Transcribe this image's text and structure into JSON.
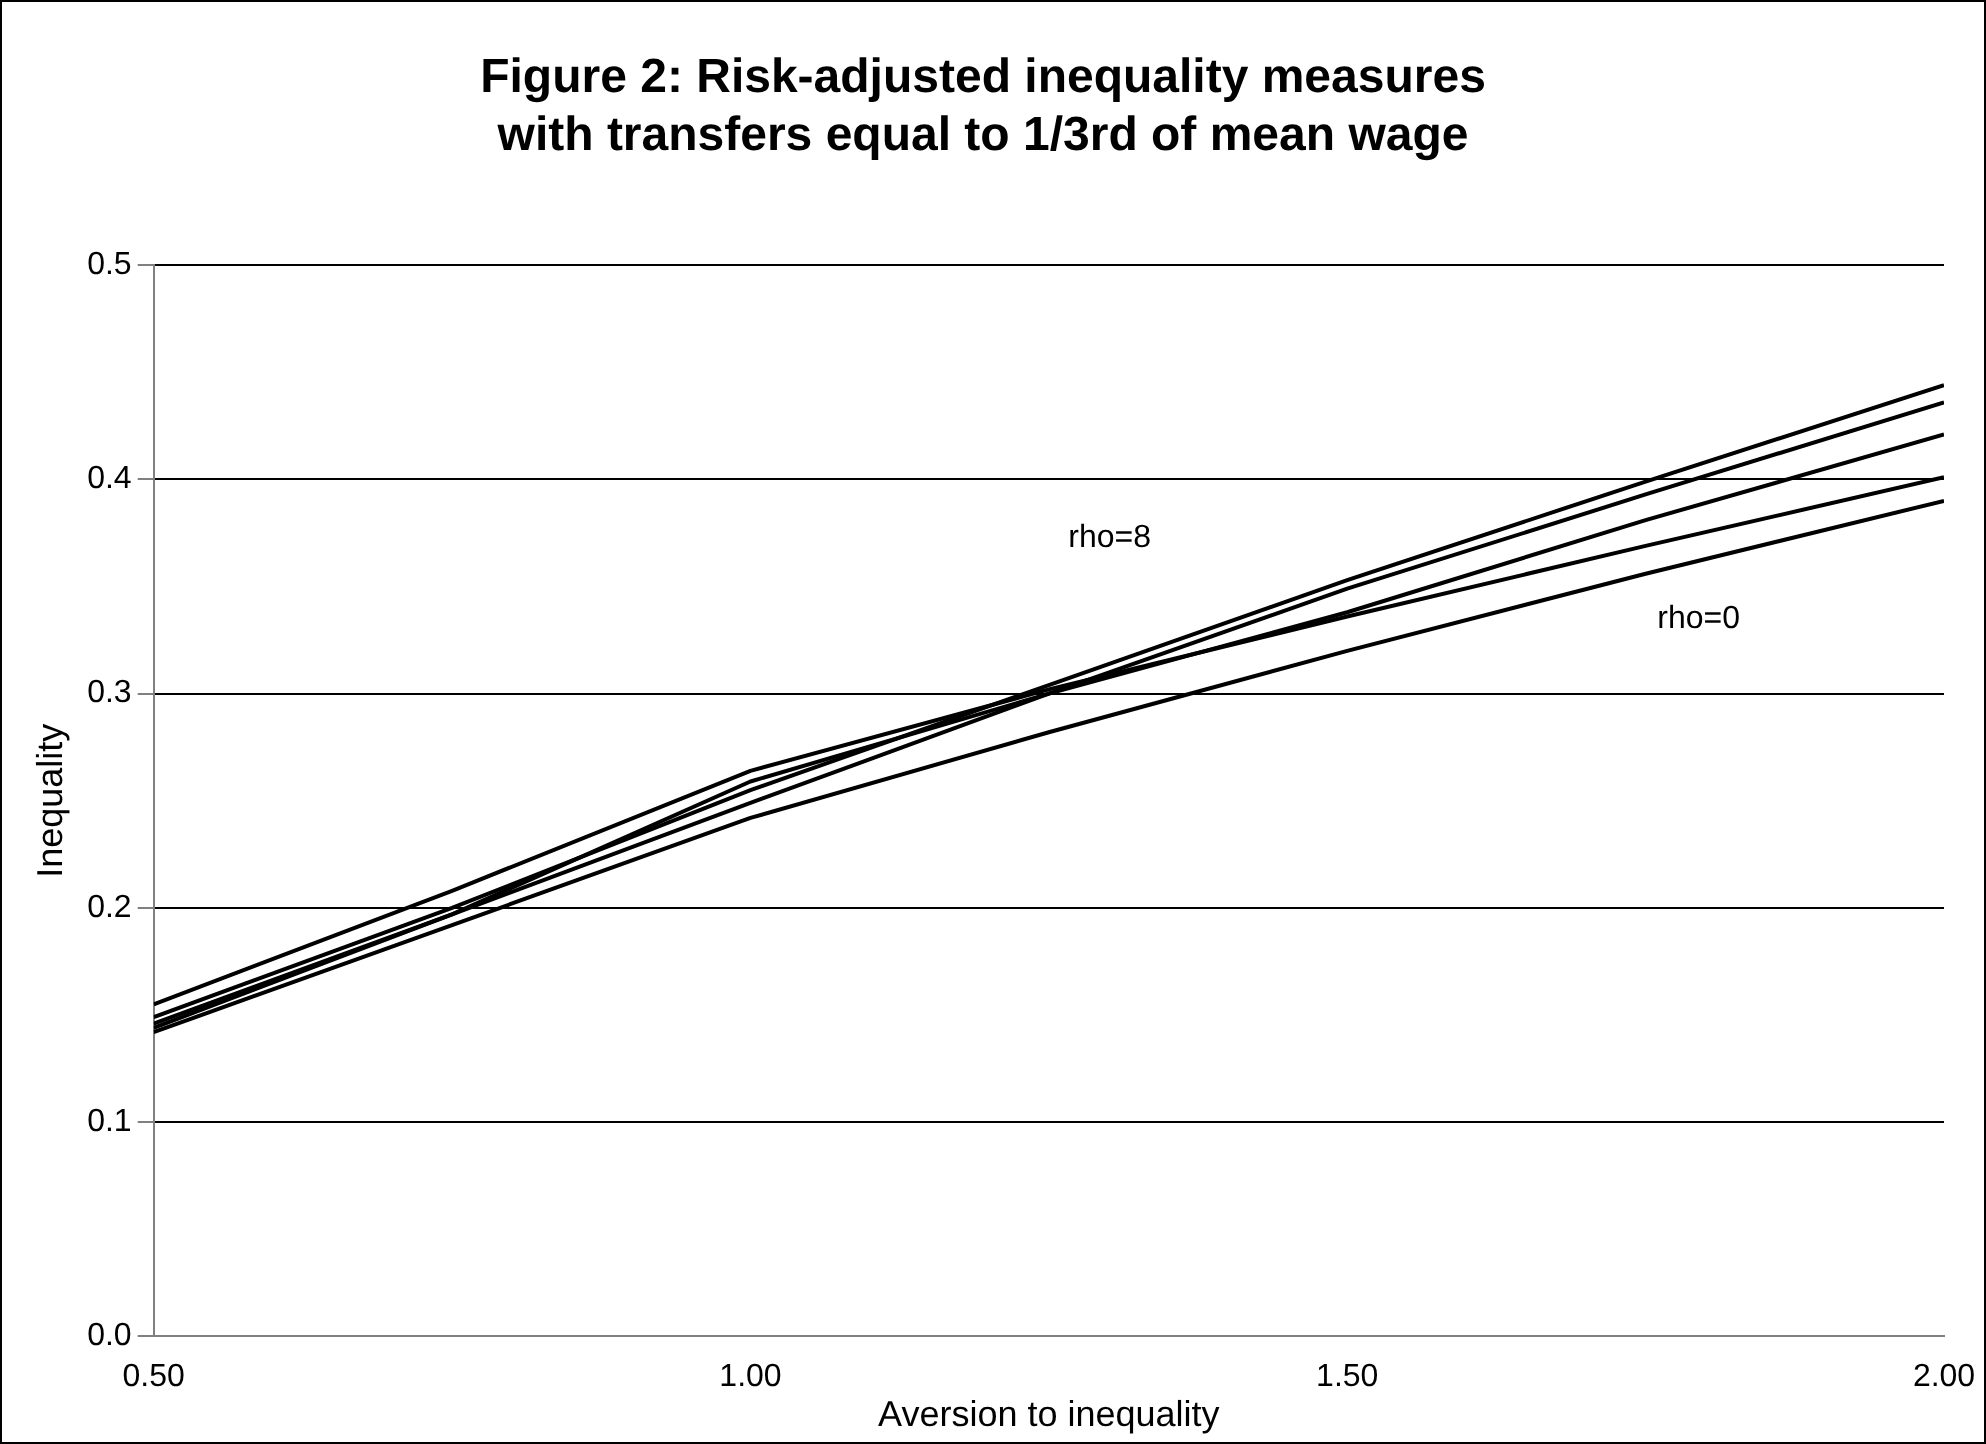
{
  "chart_data": {
    "type": "line",
    "title": "Figure 2: Risk-adjusted inequality measures\nwith transfers equal to 1/3rd of mean wage",
    "xlabel": "Aversion to inequality",
    "ylabel": "Inequality",
    "x": [
      0.5,
      0.75,
      1.0,
      1.25,
      1.5,
      1.75,
      2.0
    ],
    "series": [
      {
        "color": "#000000",
        "values": [
          0.155,
          0.208,
          0.264,
          0.302,
          0.336,
          0.369,
          0.401
        ]
      },
      {
        "color": "#000000",
        "values": [
          0.149,
          0.2,
          0.255,
          0.304,
          0.353,
          0.399,
          0.444
        ]
      },
      {
        "color": "#000000",
        "values": [
          0.146,
          0.197,
          0.249,
          0.3,
          0.349,
          0.393,
          0.436
        ]
      },
      {
        "color": "#000000",
        "values": [
          0.144,
          0.197,
          0.259,
          0.3,
          0.338,
          0.381,
          0.421
        ]
      },
      {
        "color": "#000000",
        "values": [
          0.142,
          0.192,
          0.242,
          0.282,
          0.32,
          0.356,
          0.39
        ]
      }
    ],
    "xlim": [
      0.5,
      2.0
    ],
    "xticks": [
      {
        "value": 0.5,
        "label": "0.50"
      },
      {
        "value": 1.0,
        "label": "1.00"
      },
      {
        "value": 1.5,
        "label": "1.50"
      },
      {
        "value": 2.0,
        "label": "2.00"
      }
    ],
    "ylim": [
      0,
      0.5
    ],
    "yticks": [
      {
        "value": 0,
        "label": "0.0"
      },
      {
        "value": 0.1,
        "label": "0.1"
      },
      {
        "value": 0.2,
        "label": "0.2"
      },
      {
        "value": 0.3,
        "label": "0.3"
      },
      {
        "value": 0.4,
        "label": "0.4"
      },
      {
        "value": 0.5,
        "label": "0.5"
      }
    ],
    "grid": "y",
    "legend": false,
    "marker": "none",
    "line_style": "solid",
    "annotations": [
      "rho=8",
      "rho=0"
    ]
  }
}
